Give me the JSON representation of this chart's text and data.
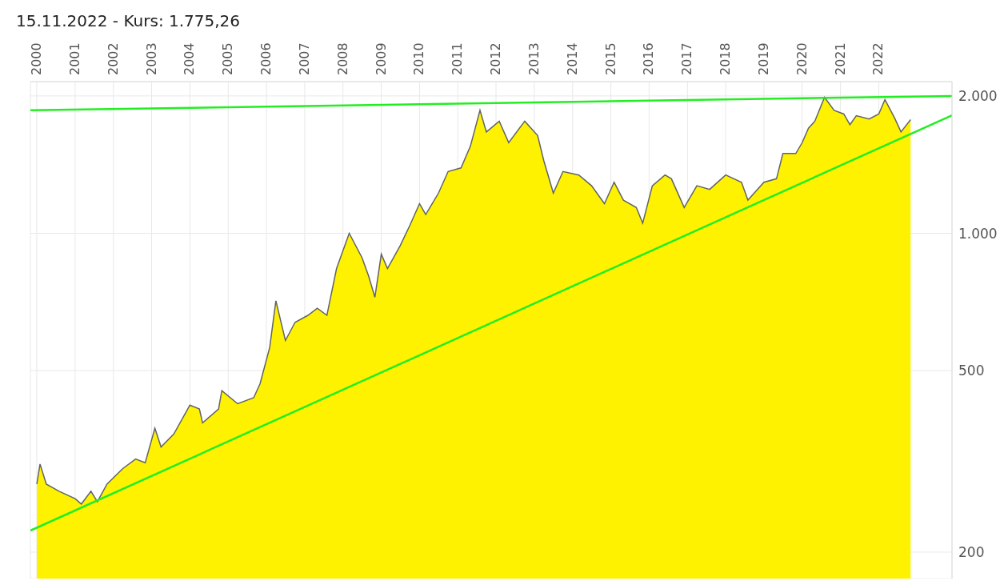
{
  "chart_data": {
    "type": "area",
    "title": "15.11.2022  -  Kurs: 1.775,26",
    "log": true,
    "grid": true,
    "xlim": [
      "1999-11",
      "2023-12"
    ],
    "xticks": [
      "2000",
      "2001",
      "2002",
      "2003",
      "2004",
      "2005",
      "2006",
      "2007",
      "2008",
      "2009",
      "2010",
      "2011",
      "2012",
      "2013",
      "2014",
      "2015",
      "2016",
      "2017",
      "2018",
      "2019",
      "2020",
      "2021",
      "2022"
    ],
    "ylim": [
      175,
      2150
    ],
    "yticks": [
      {
        "value": 200,
        "label": "200"
      },
      {
        "value": 500,
        "label": "500"
      },
      {
        "value": 1000,
        "label": "1.000"
      },
      {
        "value": 2000,
        "label": "2.000"
      }
    ],
    "x": [
      "2000-01",
      "2000-02",
      "2000-04",
      "2000-08",
      "2001-01",
      "2001-03",
      "2001-06",
      "2001-08",
      "2001-11",
      "2002-04",
      "2002-08",
      "2002-11",
      "2003-02",
      "2003-04",
      "2003-08",
      "2004-01",
      "2004-04",
      "2004-05",
      "2004-10",
      "2004-11",
      "2005-04",
      "2005-09",
      "2005-11",
      "2006-02",
      "2006-04",
      "2006-07",
      "2006-10",
      "2007-02",
      "2007-05",
      "2007-08",
      "2007-11",
      "2008-03",
      "2008-07",
      "2008-09",
      "2008-11",
      "2009-01",
      "2009-03",
      "2009-07",
      "2009-10",
      "2010-01",
      "2010-03",
      "2010-07",
      "2010-10",
      "2011-02",
      "2011-05",
      "2011-08",
      "2011-10",
      "2012-02",
      "2012-05",
      "2012-10",
      "2013-02",
      "2013-04",
      "2013-07",
      "2013-10",
      "2014-03",
      "2014-07",
      "2014-11",
      "2015-02",
      "2015-05",
      "2015-09",
      "2015-11",
      "2016-02",
      "2016-06",
      "2016-08",
      "2016-12",
      "2017-04",
      "2017-08",
      "2018-01",
      "2018-06",
      "2018-08",
      "2019-01",
      "2019-05",
      "2019-07",
      "2019-11",
      "2020-01",
      "2020-03",
      "2020-05",
      "2020-08",
      "2020-11",
      "2021-02",
      "2021-04",
      "2021-06",
      "2021-10",
      "2022-01",
      "2022-03",
      "2022-06",
      "2022-08",
      "2022-11"
    ],
    "series": [
      {
        "color": "#fff200",
        "values": [
          282,
          312,
          282,
          272,
          262,
          255,
          272,
          258,
          282,
          305,
          320,
          314,
          374,
          340,
          363,
          420,
          412,
          384,
          412,
          452,
          423,
          436,
          468,
          562,
          711,
          582,
          638,
          661,
          685,
          661,
          837,
          1000,
          884,
          807,
          724,
          900,
          837,
          940,
          1041,
          1161,
          1099,
          1225,
          1366,
          1391,
          1551,
          1860,
          1668,
          1761,
          1580,
          1761,
          1638,
          1443,
          1225,
          1366,
          1342,
          1271,
          1161,
          1294,
          1182,
          1139,
          1052,
          1271,
          1342,
          1317,
          1139,
          1271,
          1248,
          1342,
          1294,
          1182,
          1294,
          1317,
          1496,
          1496,
          1580,
          1699,
          1761,
          1986,
          1860,
          1826,
          1730,
          1810,
          1781,
          1826,
          1964,
          1790,
          1668,
          1775
        ]
      },
      {
        "type": "line",
        "color": "#22ee22",
        "x": [
          "1999-11",
          "2023-12"
        ],
        "values": [
          1860,
          2000
        ]
      },
      {
        "type": "line",
        "color": "#22ee22",
        "x": [
          "1999-11",
          "2023-12"
        ],
        "values": [
          223,
          1814
        ]
      }
    ]
  }
}
